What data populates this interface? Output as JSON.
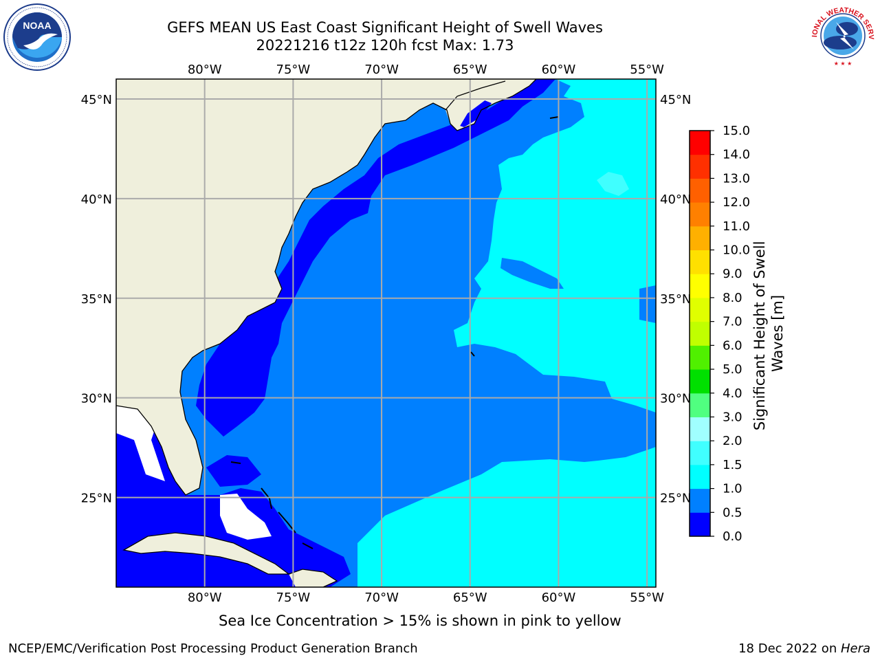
{
  "title": {
    "line1": "GEFS MEAN US East Coast Significant Height of Swell Waves",
    "line2": "20221216 t12z 120h fcst   Max: 1.73"
  },
  "map": {
    "lon_labels": [
      "80°W",
      "75°W",
      "70°W",
      "65°W",
      "60°W",
      "55°W"
    ],
    "lat_labels": [
      "45°N",
      "40°N",
      "35°N",
      "30°N",
      "25°N"
    ],
    "lon_range": [
      -85,
      -54.5
    ],
    "lat_range": [
      20.5,
      46
    ]
  },
  "colorbar": {
    "label": "Significant Height of Swell Waves [m]",
    "ticks": [
      "0.0",
      "0.5",
      "1.0",
      "1.5",
      "2.0",
      "3.0",
      "4.0",
      "5.0",
      "6.0",
      "7.0",
      "8.0",
      "9.0",
      "10.0",
      "11.0",
      "12.0",
      "13.0",
      "14.0",
      "15.0"
    ],
    "colors": [
      "#0000ff",
      "#0080ff",
      "#00ffff",
      "#40ffff",
      "#a0ffff",
      "#50ff80",
      "#00e000",
      "#50f000",
      "#c0ff00",
      "#e0ff00",
      "#ffff00",
      "#ffe000",
      "#ffb000",
      "#ff8000",
      "#ff6000",
      "#ff3000",
      "#ff0000"
    ]
  },
  "colors": {
    "land": "#efefdc",
    "grid": "#aaaaaa",
    "no_data": "#ffffff"
  },
  "logos": {
    "left_icon": "noaa-logo",
    "left_text": "NOAA",
    "right_icon": "nws-logo",
    "right_text": "NATIONAL WEATHER SERVICE"
  },
  "sea_ice_note": "Sea Ice Concentration > 15% is shown in pink to yellow",
  "footer": {
    "left": "NCEP/EMC/Verification Post Processing Product Generation Branch",
    "right_date": "18 Dec 2022 on ",
    "right_machine": "Hera"
  }
}
